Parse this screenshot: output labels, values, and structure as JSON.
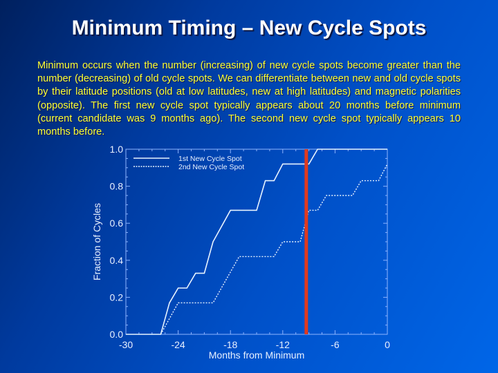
{
  "slide": {
    "title": "Minimum Timing – New Cycle Spots",
    "description": "Minimum occurs when the number (increasing) of new cycle spots become greater than the number (decreasing) of old cycle spots. We can differentiate between new and old cycle spots by their latitude positions (old at low latitudes, new at high latitudes) and magnetic polarities (opposite). The first new cycle spot typically appears about 20 months before minimum (current candidate was 9 months ago). The second new cycle spot typically appears 10 months before."
  },
  "colors": {
    "title_text": "#ffffff",
    "description_text": "#ffff33",
    "series_line": "#e8f4ff",
    "marker_line": "#e03a1e",
    "axis": "#8fb4ff"
  },
  "chart_data": {
    "type": "line",
    "title": "",
    "xlabel": "Months from Minimum",
    "ylabel": "Fraction of Cycles",
    "xlim": [
      -30,
      0
    ],
    "ylim": [
      0.0,
      1.0
    ],
    "xticks": [
      "-30",
      "-24",
      "-18",
      "-12",
      "-6",
      "0"
    ],
    "yticks": [
      "0.0",
      "0.2",
      "0.4",
      "0.6",
      "0.8",
      "1.0"
    ],
    "grid": false,
    "legend_position": "upper left",
    "series": [
      {
        "name": "1st New Cycle Spot",
        "style": "solid",
        "x": [
          -30,
          -26,
          -25,
          -24,
          -23,
          -22,
          -21,
          -20,
          -18,
          -15,
          -14,
          -13,
          -12,
          -9,
          -8,
          0
        ],
        "y": [
          0.0,
          0.0,
          0.17,
          0.25,
          0.25,
          0.33,
          0.33,
          0.5,
          0.67,
          0.67,
          0.83,
          0.83,
          0.92,
          0.92,
          1.0,
          1.0
        ]
      },
      {
        "name": "2nd New Cycle Spot",
        "style": "dotted",
        "x": [
          -26,
          -24,
          -20,
          -17,
          -13,
          -12,
          -10,
          -9,
          -8,
          -7,
          -4,
          -3,
          -1,
          0
        ],
        "y": [
          0.0,
          0.17,
          0.17,
          0.42,
          0.42,
          0.5,
          0.5,
          0.67,
          0.67,
          0.75,
          0.75,
          0.83,
          0.83,
          0.92
        ]
      }
    ],
    "annotations": [
      {
        "type": "vertical_line",
        "x": -9.3,
        "color": "#e03a1e",
        "label": "current candidate (~9 months ago)"
      }
    ]
  }
}
